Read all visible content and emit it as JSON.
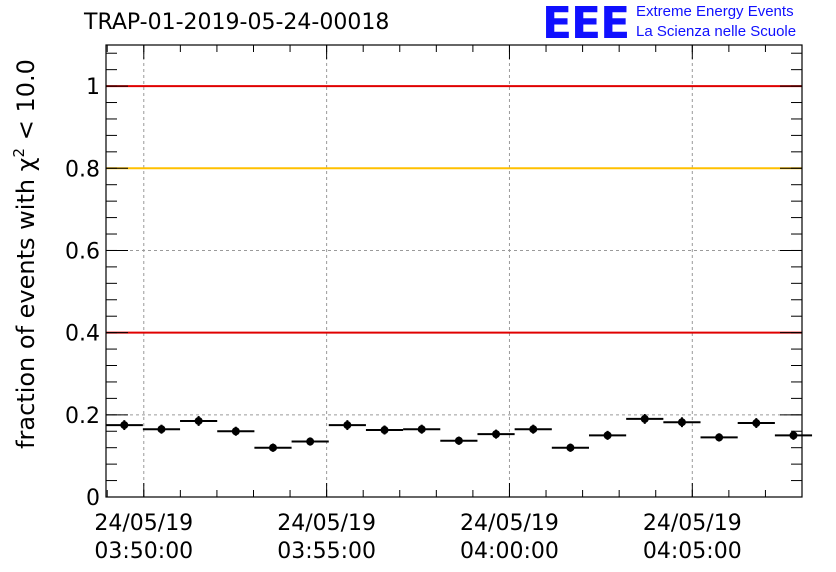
{
  "header": {
    "title": "TRAP-01-2019-05-24-00018",
    "logo_text": "EEE",
    "brand_line1": "Extreme Energy Events",
    "brand_line2": "La Scienza nelle Scuole"
  },
  "colors": {
    "brand": "#1010ff",
    "threshold_red": "#e00000",
    "threshold_yellow": "#ffc000",
    "markers": "#000000"
  },
  "chart_data": {
    "type": "scatter",
    "title": "TRAP-01-2019-05-24-00018",
    "ylabel_prefix": "fraction of events with ",
    "ylabel_symbol": "χ",
    "ylabel_sup": "2",
    "ylabel_suffix": " < 10.0",
    "xlabel": "",
    "ylim": [
      0,
      1.1
    ],
    "yticks": [
      0,
      0.2,
      0.4,
      0.6,
      0.8,
      1
    ],
    "ytick_labels": [
      "0",
      "0.2",
      "0.4",
      "0.6",
      "0.8",
      "1"
    ],
    "x_axis": "time",
    "xlim": [
      "24/05/19 03:48:58",
      "24/05/19 04:08:00"
    ],
    "xticks": [
      {
        "date": "24/05/19",
        "time": "03:50:00"
      },
      {
        "date": "24/05/19",
        "time": "03:55:00"
      },
      {
        "date": "24/05/19",
        "time": "04:00:00"
      },
      {
        "date": "24/05/19",
        "time": "04:05:00"
      }
    ],
    "grid": true,
    "threshold_lines": [
      {
        "y": 1.0,
        "color": "#e00000"
      },
      {
        "y": 0.8,
        "color": "#ffc000"
      },
      {
        "y": 0.4,
        "color": "#e00000"
      }
    ],
    "bin_width_seconds": 61,
    "series": [
      {
        "points": [
          {
            "x": "03:49:28",
            "y": 0.175,
            "err": 0.012
          },
          {
            "x": "03:50:29",
            "y": 0.165,
            "err": 0.011
          },
          {
            "x": "03:51:30",
            "y": 0.185,
            "err": 0.012
          },
          {
            "x": "03:52:31",
            "y": 0.16,
            "err": 0.011
          },
          {
            "x": "03:53:32",
            "y": 0.12,
            "err": 0.01
          },
          {
            "x": "03:54:33",
            "y": 0.135,
            "err": 0.01
          },
          {
            "x": "03:55:34",
            "y": 0.175,
            "err": 0.012
          },
          {
            "x": "03:56:35",
            "y": 0.163,
            "err": 0.011
          },
          {
            "x": "03:57:36",
            "y": 0.165,
            "err": 0.011
          },
          {
            "x": "03:58:37",
            "y": 0.137,
            "err": 0.01
          },
          {
            "x": "03:59:38",
            "y": 0.153,
            "err": 0.011
          },
          {
            "x": "04:00:39",
            "y": 0.165,
            "err": 0.011
          },
          {
            "x": "04:01:40",
            "y": 0.12,
            "err": 0.01
          },
          {
            "x": "04:02:41",
            "y": 0.15,
            "err": 0.011
          },
          {
            "x": "04:03:42",
            "y": 0.19,
            "err": 0.012
          },
          {
            "x": "04:04:43",
            "y": 0.182,
            "err": 0.012
          },
          {
            "x": "04:05:44",
            "y": 0.145,
            "err": 0.01
          },
          {
            "x": "04:06:45",
            "y": 0.18,
            "err": 0.012
          },
          {
            "x": "04:07:46",
            "y": 0.15,
            "err": 0.011
          }
        ]
      }
    ]
  }
}
